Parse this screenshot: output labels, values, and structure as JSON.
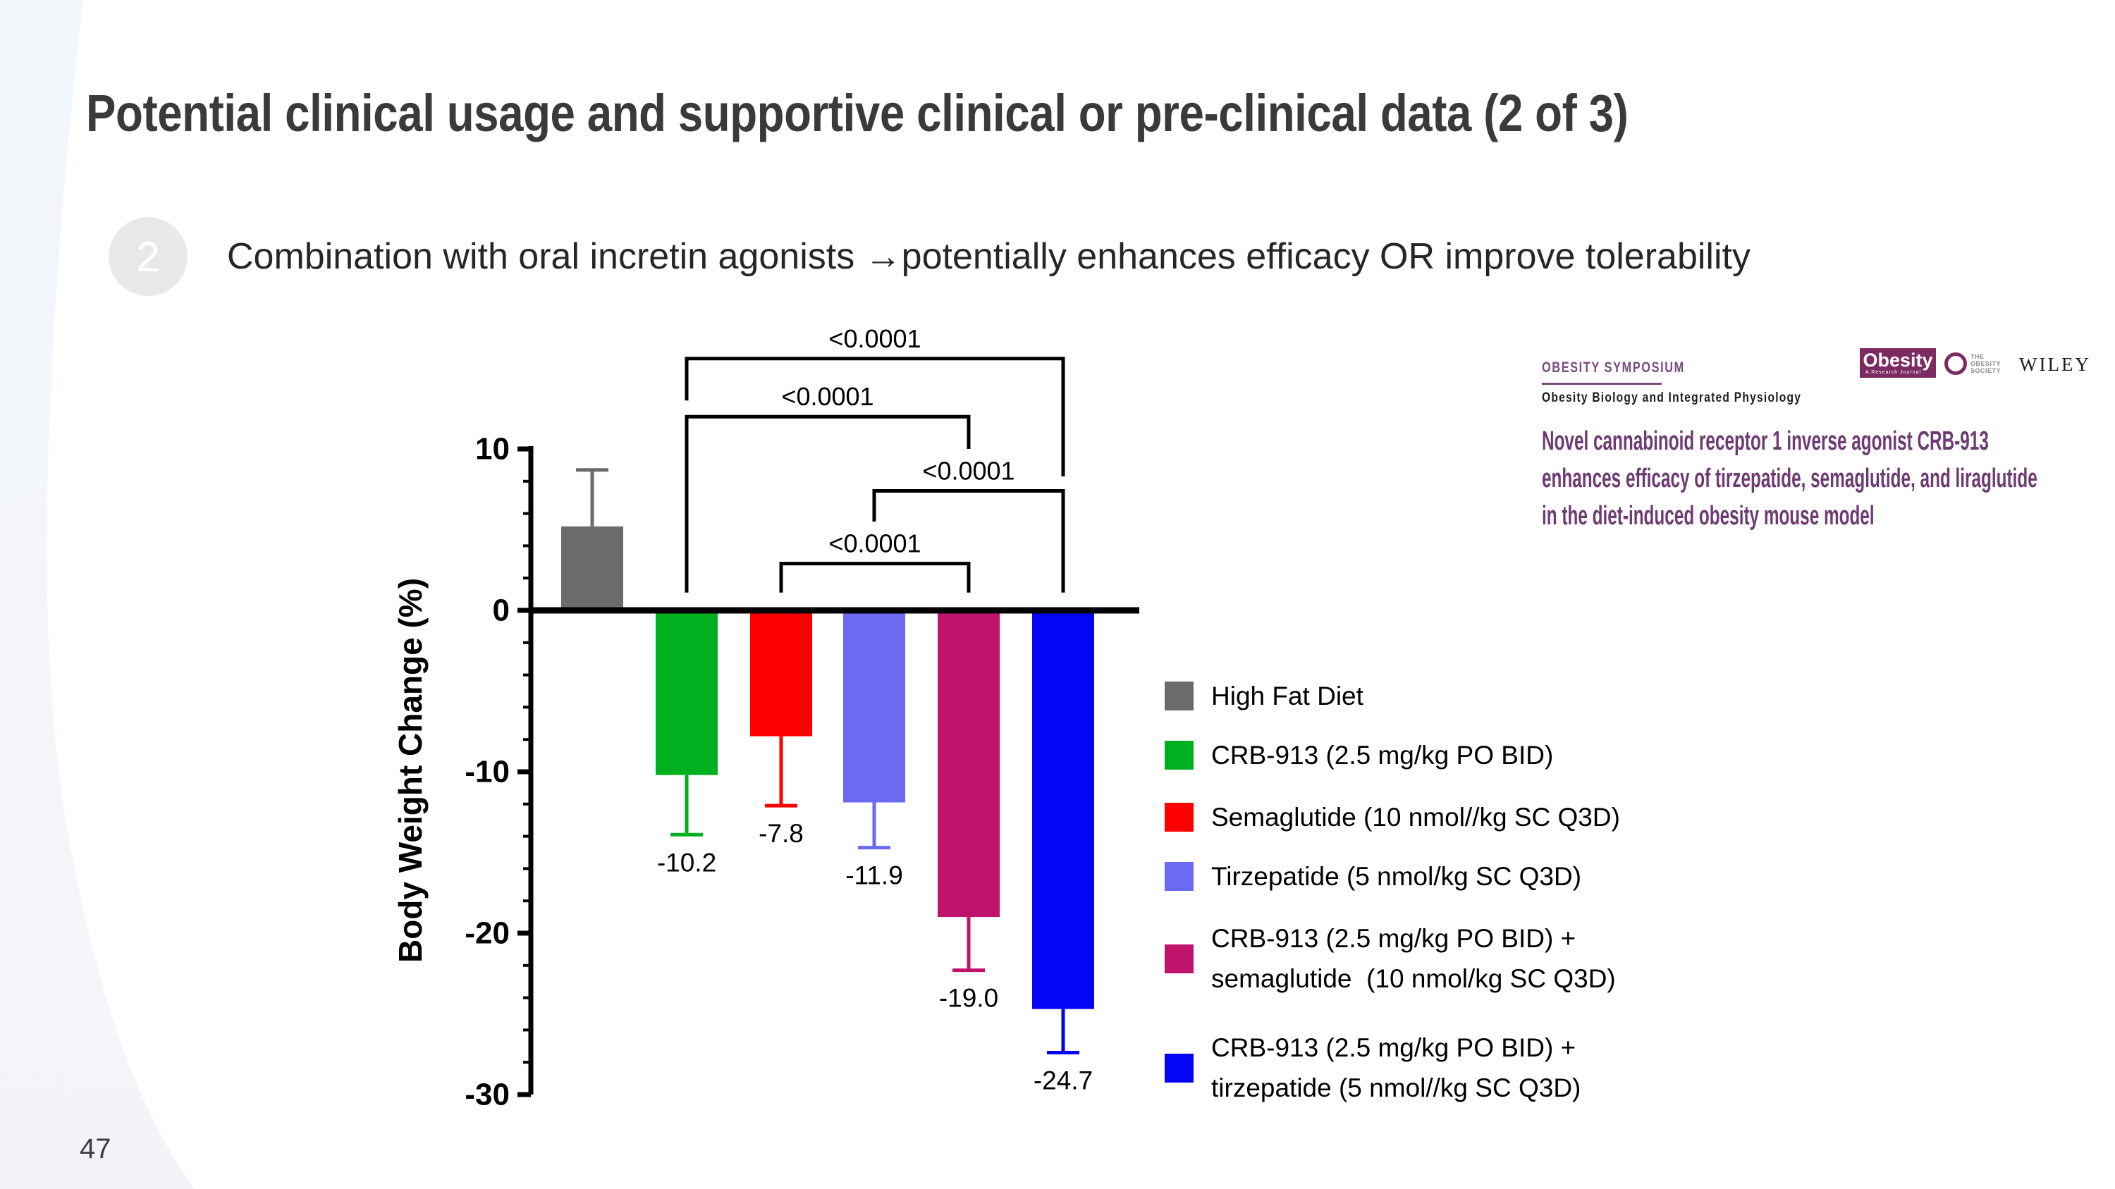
{
  "slide": {
    "title": "Potential clinical usage and supportive clinical or pre-clinical data (2 of 3)",
    "page_number": "47",
    "bullet": {
      "number": "2",
      "text": "Combination with oral incretin agonists →potentially enhances efficacy OR improve tolerability"
    }
  },
  "reference": {
    "symposium_label": "OBESITY SYMPOSIUM",
    "symposium_sub": "Obesity Biology and Integrated Physiology",
    "paper_title_lines": [
      "Novel cannabinoid receptor 1 inverse agonist CRB-913",
      "enhances efficacy of tirzepatide, semaglutide, and liraglutide",
      "in the diet-induced obesity mouse model"
    ],
    "journal_logo": {
      "name": "Obesity",
      "tagline": "A Research Journal",
      "bg_color": "#7C2B62"
    },
    "society_logo_lines": [
      "THE",
      "OBESITY",
      "SOCIETY"
    ],
    "publisher": "WILEY",
    "accent_color": "#7B4A7E",
    "title_color": "#6D3A73"
  },
  "chart_data": {
    "type": "bar",
    "title": "",
    "xlabel": "",
    "ylabel": "Body Weight Change (%)",
    "ylim": [
      -30,
      10
    ],
    "yticks": [
      10,
      0,
      -10,
      -20,
      -30
    ],
    "minor_tick_step": 2,
    "grid": false,
    "legend_position": "right",
    "categories": [
      "High Fat Diet",
      "CRB-913 (2.5 mg/kg PO BID)",
      "Semaglutide (10 nmol//kg SC Q3D)",
      "Tirzepatide (5 nmol/kg SC Q3D)",
      "CRB-913 (2.5 mg/kg PO BID) + semaglutide (10 nmol/kg SC Q3D)",
      "CRB-913 (2.5 mg/kg PO BID) + tirzepatide (5 nmol//kg SC Q3D)"
    ],
    "values": [
      5.2,
      -10.2,
      -7.8,
      -11.9,
      -19.0,
      -24.7
    ],
    "errors": [
      3.5,
      3.7,
      4.3,
      2.8,
      3.3,
      2.7
    ],
    "error_direction": "away-from-zero",
    "value_labels": [
      "",
      "-10.2",
      "-7.8",
      "-11.9",
      "-19.0",
      "-24.7"
    ],
    "bar_colors": [
      "#6b6b6b",
      "#00b01e",
      "#fe0000",
      "#6b6bf2",
      "#c0136b",
      "#0505f5"
    ],
    "significance_brackets": [
      {
        "a": 1,
        "b": 5,
        "label": "<0.0001",
        "bar_y": 15.6,
        "drop_a": 13.0,
        "drop_b": 8.3
      },
      {
        "a": 1,
        "b": 4,
        "label": "<0.0001",
        "bar_y": 12.0,
        "drop_a": 1.1,
        "drop_b": 10.0
      },
      {
        "a": 3,
        "b": 5,
        "label": "<0.0001",
        "bar_y": 7.4,
        "drop_a": 5.5,
        "drop_b": 1.1
      },
      {
        "a": 2,
        "b": 4,
        "label": "<0.0001",
        "bar_y": 2.9,
        "drop_a": 1.1,
        "drop_b": 1.1
      }
    ],
    "legend": {
      "items": [
        {
          "color": "#6b6b6b",
          "lines": [
            "High Fat Diet"
          ]
        },
        {
          "color": "#00b01e",
          "lines": [
            "CRB-913 (2.5 mg/kg PO BID)"
          ]
        },
        {
          "color": "#fe0000",
          "lines": [
            "Semaglutide (10 nmol//kg SC Q3D)"
          ]
        },
        {
          "color": "#6b6bf2",
          "lines": [
            "Tirzepatide (5 nmol/kg SC Q3D)"
          ]
        },
        {
          "color": "#c0136b",
          "lines": [
            "CRB-913 (2.5 mg/kg PO BID) +",
            "semaglutide  (10 nmol/kg SC Q3D)"
          ]
        },
        {
          "color": "#0505f5",
          "lines": [
            "CRB-913 (2.5 mg/kg PO BID) +",
            "tirzepatide (5 nmol//kg SC Q3D)"
          ]
        }
      ]
    }
  }
}
